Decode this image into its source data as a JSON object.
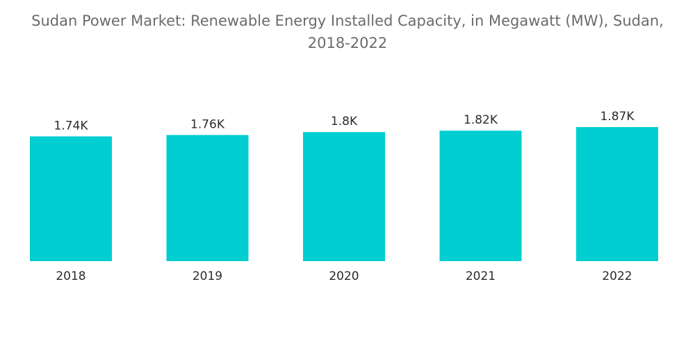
{
  "chart_data": {
    "type": "bar",
    "title_line1": "Sudan Power Market: Renewable Energy Installed Capacity, in Megawatt (MW), Sudan,",
    "title_line2": "2018-2022",
    "categories": [
      "2018",
      "2019",
      "2020",
      "2021",
      "2022"
    ],
    "values": [
      1740,
      1760,
      1800,
      1820,
      1870
    ],
    "data_labels": [
      "1.74K",
      "1.76K",
      "1.8K",
      "1.82K",
      "1.87K"
    ],
    "ylim": [
      0,
      1870
    ],
    "grid": false,
    "bar_color": "#00ced1"
  }
}
